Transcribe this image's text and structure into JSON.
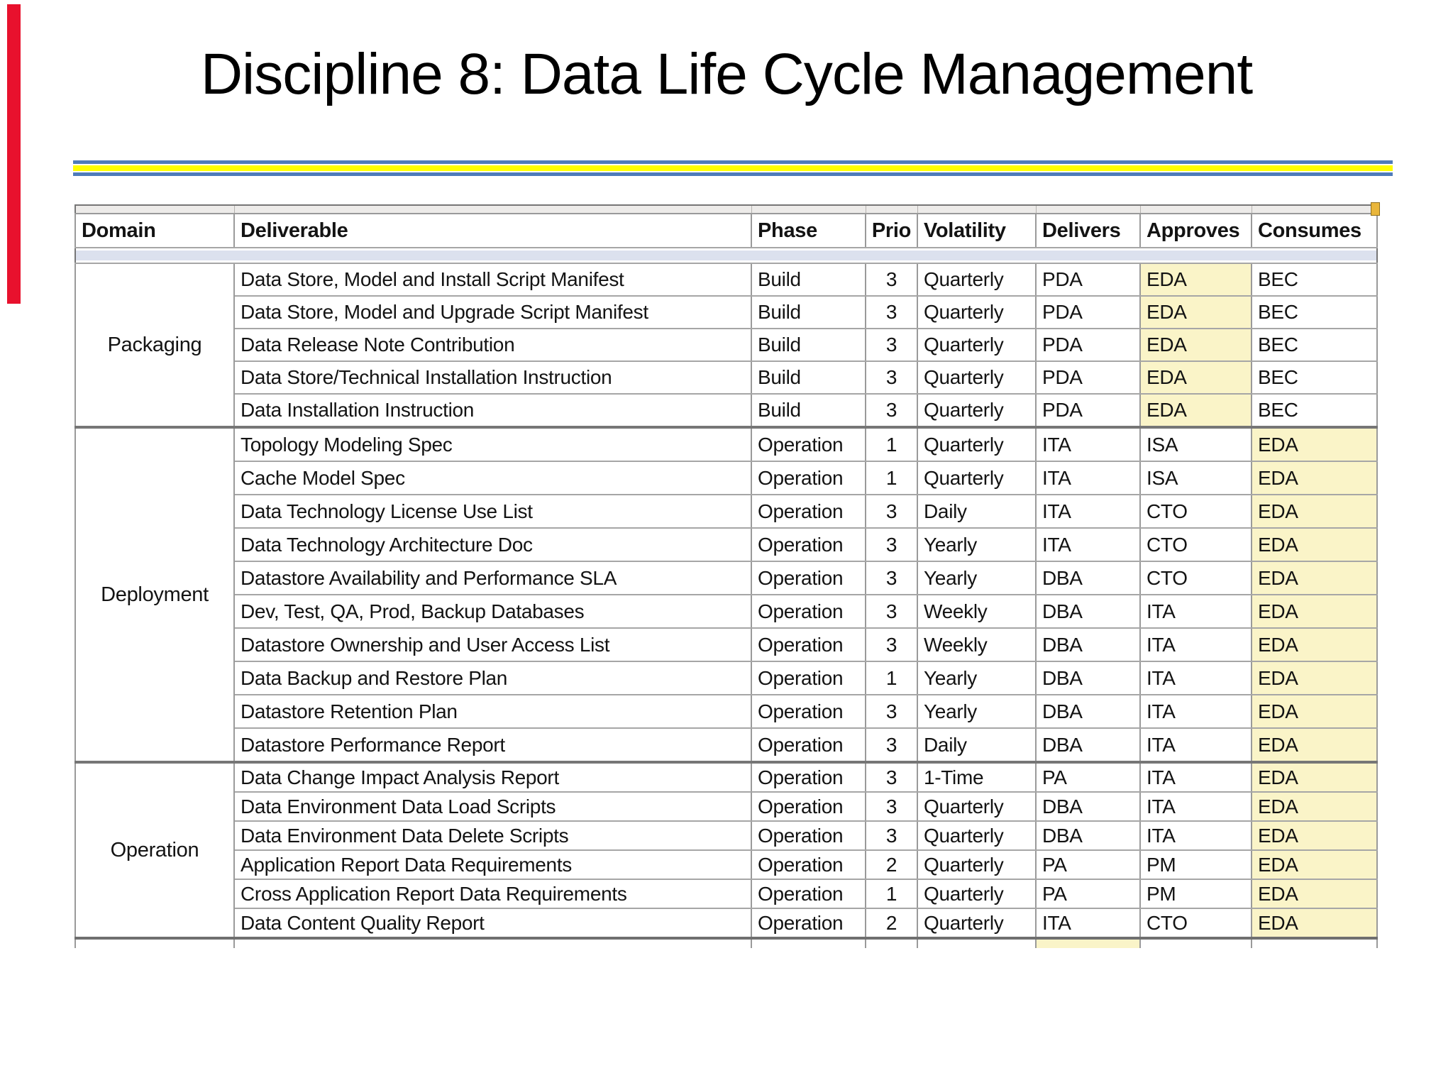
{
  "slide": {
    "title": "Discipline 8: Data Life Cycle Management",
    "colors": {
      "red_bar": "#e8112d",
      "rule_blue": "#4f7cba",
      "rule_yellow": "#ffff00",
      "highlight_yellow": "#faf4c8",
      "header_band_blue": "#dce1ee",
      "sheet_band_gray": "#edebe9",
      "gridline_gray": "#9a9a9a",
      "corner_tick_gold": "#e9b63b"
    }
  },
  "table": {
    "columns": [
      "Domain",
      "Deliverable",
      "Phase",
      "Prio",
      "Volatility",
      "Delivers",
      "Approves",
      "Consumes"
    ],
    "sections": [
      {
        "domain": "Packaging",
        "rows": [
          {
            "deliverable": "Data Store, Model and Install Script Manifest",
            "phase": "Build",
            "prio": "3",
            "volatility": "Quarterly",
            "delivers": "PDA",
            "approves": "EDA",
            "consumes": "BEC",
            "highlight": "approves"
          },
          {
            "deliverable": "Data Store, Model and Upgrade Script Manifest",
            "phase": "Build",
            "prio": "3",
            "volatility": "Quarterly",
            "delivers": "PDA",
            "approves": "EDA",
            "consumes": "BEC",
            "highlight": "approves"
          },
          {
            "deliverable": "Data Release Note Contribution",
            "phase": "Build",
            "prio": "3",
            "volatility": "Quarterly",
            "delivers": "PDA",
            "approves": "EDA",
            "consumes": "BEC",
            "highlight": "approves"
          },
          {
            "deliverable": "Data Store/Technical Installation Instruction",
            "phase": "Build",
            "prio": "3",
            "volatility": "Quarterly",
            "delivers": "PDA",
            "approves": "EDA",
            "consumes": "BEC",
            "highlight": "approves"
          },
          {
            "deliverable": "Data Installation Instruction",
            "phase": "Build",
            "prio": "3",
            "volatility": "Quarterly",
            "delivers": "PDA",
            "approves": "EDA",
            "consumes": "BEC",
            "highlight": "approves"
          }
        ]
      },
      {
        "domain": "Deployment",
        "rows": [
          {
            "deliverable": "Topology Modeling Spec",
            "phase": "Operation",
            "prio": "1",
            "volatility": "Quarterly",
            "delivers": "ITA",
            "approves": "ISA",
            "consumes": "EDA",
            "highlight": "consumes"
          },
          {
            "deliverable": "Cache Model Spec",
            "phase": "Operation",
            "prio": "1",
            "volatility": "Quarterly",
            "delivers": "ITA",
            "approves": "ISA",
            "consumes": "EDA",
            "highlight": "consumes"
          },
          {
            "deliverable": "Data Technology License Use List",
            "phase": "Operation",
            "prio": "3",
            "volatility": "Daily",
            "delivers": "ITA",
            "approves": "CTO",
            "consumes": "EDA",
            "highlight": "consumes"
          },
          {
            "deliverable": "Data Technology Architecture Doc",
            "phase": "Operation",
            "prio": "3",
            "volatility": "Yearly",
            "delivers": "ITA",
            "approves": "CTO",
            "consumes": "EDA",
            "highlight": "consumes"
          },
          {
            "deliverable": "Datastore Availability and Performance SLA",
            "phase": "Operation",
            "prio": "3",
            "volatility": "Yearly",
            "delivers": "DBA",
            "approves": "CTO",
            "consumes": "EDA",
            "highlight": "consumes"
          },
          {
            "deliverable": "Dev, Test, QA, Prod, Backup Databases",
            "phase": "Operation",
            "prio": "3",
            "volatility": "Weekly",
            "delivers": "DBA",
            "approves": "ITA",
            "consumes": "EDA",
            "highlight": "consumes"
          },
          {
            "deliverable": "Datastore Ownership and User Access List",
            "phase": "Operation",
            "prio": "3",
            "volatility": "Weekly",
            "delivers": "DBA",
            "approves": "ITA",
            "consumes": "EDA",
            "highlight": "consumes"
          },
          {
            "deliverable": "Data Backup and Restore Plan",
            "phase": "Operation",
            "prio": "1",
            "volatility": "Yearly",
            "delivers": "DBA",
            "approves": "ITA",
            "consumes": "EDA",
            "highlight": "consumes"
          },
          {
            "deliverable": "Datastore Retention Plan",
            "phase": "Operation",
            "prio": "3",
            "volatility": "Yearly",
            "delivers": "DBA",
            "approves": "ITA",
            "consumes": "EDA",
            "highlight": "consumes"
          },
          {
            "deliverable": "Datastore Performance Report",
            "phase": "Operation",
            "prio": "3",
            "volatility": "Daily",
            "delivers": "DBA",
            "approves": "ITA",
            "consumes": "EDA",
            "highlight": "consumes"
          }
        ]
      },
      {
        "domain": "Operation",
        "rows": [
          {
            "deliverable": "Data Change Impact Analysis Report",
            "phase": "Operation",
            "prio": "3",
            "volatility": "1-Time",
            "delivers": "PA",
            "approves": "ITA",
            "consumes": "EDA",
            "highlight": "consumes"
          },
          {
            "deliverable": "Data Environment Data Load Scripts",
            "phase": "Operation",
            "prio": "3",
            "volatility": "Quarterly",
            "delivers": "DBA",
            "approves": "ITA",
            "consumes": "EDA",
            "highlight": "consumes"
          },
          {
            "deliverable": "Data Environment Data Delete Scripts",
            "phase": "Operation",
            "prio": "3",
            "volatility": "Quarterly",
            "delivers": "DBA",
            "approves": "ITA",
            "consumes": "EDA",
            "highlight": "consumes"
          },
          {
            "deliverable": "Application Report Data Requirements",
            "phase": "Operation",
            "prio": "2",
            "volatility": "Quarterly",
            "delivers": "PA",
            "approves": "PM",
            "consumes": "EDA",
            "highlight": "consumes"
          },
          {
            "deliverable": "Cross Application Report Data Requirements",
            "phase": "Operation",
            "prio": "1",
            "volatility": "Quarterly",
            "delivers": "PA",
            "approves": "PM",
            "consumes": "EDA",
            "highlight": "consumes"
          },
          {
            "deliverable": "Data Content Quality Report",
            "phase": "Operation",
            "prio": "2",
            "volatility": "Quarterly",
            "delivers": "ITA",
            "approves": "CTO",
            "consumes": "EDA",
            "highlight": "consumes"
          }
        ]
      }
    ],
    "partial_row": {
      "highlight": "delivers"
    }
  }
}
